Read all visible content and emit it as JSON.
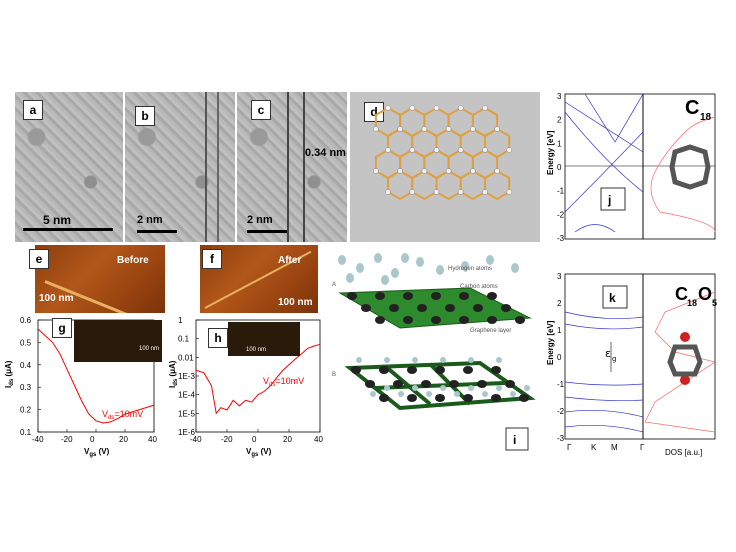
{
  "panels": {
    "a": {
      "label": "a",
      "scale": "5 nm"
    },
    "b": {
      "label": "b",
      "scale": "2 nm"
    },
    "c": {
      "label": "c",
      "scale": "2 nm",
      "spacing": "0.34 nm"
    },
    "d": {
      "label": "d"
    },
    "e": {
      "label": "e",
      "title": "Before",
      "scale": "100 nm"
    },
    "f": {
      "label": "f",
      "title": "After",
      "scale": "100 nm"
    },
    "g": {
      "label": "g",
      "inset_scale": "100 nm",
      "annotation": "V",
      "annotation_sub": "ds",
      "annotation_rest": "=10mV"
    },
    "h": {
      "label": "h",
      "inset_scale": "100 nm",
      "annotation": "V",
      "annotation_sub": "ds",
      "annotation_rest": "=10mV"
    },
    "i": {
      "label": "i",
      "legend": [
        "Hydrogen atoms",
        "Carbon atoms",
        "Graphene layer"
      ],
      "label_a": "A",
      "label_b": "B"
    },
    "j": {
      "label": "j",
      "molecule": "C",
      "molecule_sub": "18"
    },
    "k": {
      "label": "k",
      "molecule": "C",
      "molecule_sub1": "18",
      "molecule_mid": "O",
      "molecule_sub2": "5",
      "gap": "ε",
      "gap_sub": "g"
    }
  },
  "chart_data": [
    {
      "type": "line",
      "name": "g",
      "xlabel": "V",
      "xlabel_sub": "gs",
      "xlabel_unit": " (V)",
      "ylabel": "I",
      "ylabel_sub": "ds",
      "ylabel_unit": " (μA)",
      "xlim": [
        -40,
        40
      ],
      "ylim": [
        0.1,
        0.6
      ],
      "xticks": [
        "-40",
        "-20",
        "0",
        "20",
        "40"
      ],
      "yticks": [
        "0.1",
        "0.2",
        "0.3",
        "0.4",
        "0.5",
        "0.6"
      ],
      "series_color": "#ff0000",
      "x": [
        -40,
        -35,
        -30,
        -25,
        -20,
        -15,
        -10,
        -5,
        0,
        5,
        10,
        15,
        20,
        25,
        30,
        35,
        40
      ],
      "y": [
        0.56,
        0.53,
        0.5,
        0.45,
        0.38,
        0.31,
        0.24,
        0.18,
        0.15,
        0.14,
        0.145,
        0.16,
        0.18,
        0.19,
        0.2,
        0.21,
        0.22
      ]
    },
    {
      "type": "line",
      "name": "h",
      "log_y": true,
      "xlabel": "V",
      "xlabel_sub": "gs",
      "xlabel_unit": " (V)",
      "ylabel": "I",
      "ylabel_sub": "ds",
      "ylabel_unit": " (μA)",
      "xlim": [
        -40,
        40
      ],
      "ylim": [
        1e-06,
        1
      ],
      "xticks": [
        "-40",
        "-20",
        "0",
        "20",
        "40"
      ],
      "yticks": [
        "1E-6",
        "1E-5",
        "1E-4",
        "1E-3",
        "0.01",
        "0.1",
        "1"
      ],
      "series_color": "#ff0000",
      "x": [
        -40,
        -35,
        -30,
        -27,
        -24,
        -20,
        -16,
        -12,
        -8,
        -4,
        0,
        4,
        8,
        12,
        16,
        20,
        24,
        28,
        32,
        36,
        40
      ],
      "y": [
        0.002,
        0.0015,
        0.0003,
        1e-05,
        2e-05,
        1.5e-05,
        5e-05,
        2.5e-05,
        5e-05,
        4e-05,
        0.0001,
        0.00015,
        0.0003,
        0.0008,
        0.002,
        0.004,
        0.008,
        0.015,
        0.03,
        0.04,
        0.05
      ]
    },
    {
      "type": "line",
      "name": "j-bands",
      "ylabel": "Energy [eV]",
      "ylim": [
        -3,
        3
      ],
      "yticks": [
        "-3",
        "-2",
        "-1",
        "0",
        "1",
        "2",
        "3"
      ]
    },
    {
      "type": "line",
      "name": "k-bands",
      "ylabel": "Energy [eV]",
      "ylim": [
        -3,
        3
      ],
      "yticks": [
        "-3",
        "-2",
        "-1",
        "0",
        "1",
        "2",
        "3"
      ],
      "xticks": [
        "Γ",
        "K",
        "M",
        "Γ"
      ],
      "dos_label": "DOS [a.u.]"
    }
  ]
}
